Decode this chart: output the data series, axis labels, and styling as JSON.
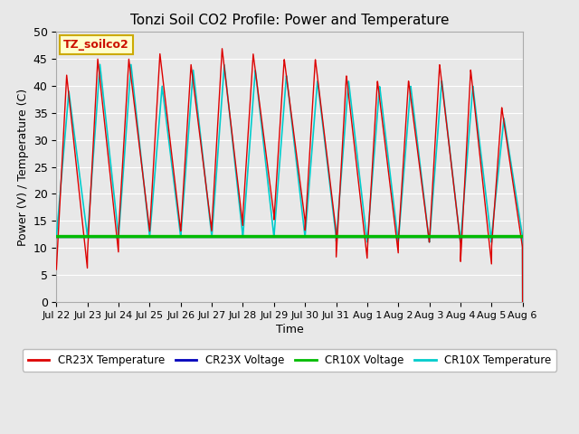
{
  "title": "Tonzi Soil CO2 Profile: Power and Temperature",
  "xlabel": "Time",
  "ylabel": "Power (V) / Temperature (C)",
  "ylim": [
    0,
    50
  ],
  "yticks": [
    0,
    5,
    10,
    15,
    20,
    25,
    30,
    35,
    40,
    45,
    50
  ],
  "annotation_text": "TZ_soilco2",
  "annotation_bg": "#ffffcc",
  "annotation_border": "#ccaa00",
  "fig_bg_color": "#e8e8e8",
  "plot_bg_color": "#e8e8e8",
  "cr23x_temp_color": "#dd0000",
  "cr23x_volt_color": "#0000bb",
  "cr10x_volt_color": "#00bb00",
  "cr10x_temp_color": "#00cccc",
  "legend_labels": [
    "CR23X Temperature",
    "CR23X Voltage",
    "CR10X Voltage",
    "CR10X Temperature"
  ],
  "x_tick_labels": [
    "Jul 22",
    "Jul 23",
    "Jul 24",
    "Jul 25",
    "Jul 26",
    "Jul 27",
    "Jul 28",
    "Jul 29",
    "Jul 30",
    "Jul 31",
    "Aug 1",
    "Aug 2",
    "Aug 3",
    "Aug 4",
    "Aug 5",
    "Aug 6"
  ],
  "n_days": 15,
  "voltage_level": 12.0,
  "cr10x_voltage_level": 12.1,
  "peak_23x": [
    42,
    45,
    45,
    46,
    44,
    47,
    46,
    45,
    45,
    42,
    41,
    41,
    44,
    43,
    36
  ],
  "min_23x": [
    6,
    9,
    13,
    13,
    13,
    14,
    16,
    15,
    13,
    8,
    9,
    11,
    11,
    7,
    10
  ],
  "peak_10x": [
    39,
    44,
    44,
    40,
    43,
    44,
    43,
    42,
    41,
    41,
    40,
    40,
    41,
    40,
    34
  ],
  "min_10x": [
    12,
    12,
    12,
    12,
    12,
    12,
    12,
    12,
    12,
    11,
    11,
    11,
    11,
    11,
    12
  ]
}
